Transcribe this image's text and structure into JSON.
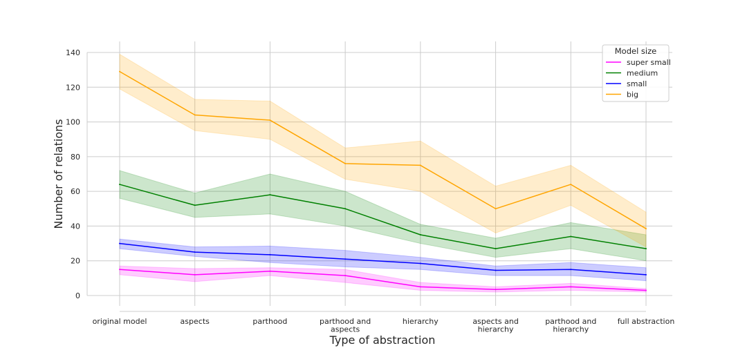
{
  "chart_data": {
    "type": "line",
    "xlabel": "Type of abstraction",
    "ylabel": "Number of relations",
    "categories": [
      "original model",
      "aspects",
      "parthood",
      "parthood and aspects",
      "hierarchy",
      "aspects and hierarchy",
      "parthood and hierarchy",
      "full abstraction"
    ],
    "y_ticks": [
      0,
      20,
      40,
      60,
      80,
      100,
      120,
      140
    ],
    "ylim": [
      -8,
      146
    ],
    "grid": true,
    "legend": {
      "title": "Model size",
      "placement": "top-right"
    },
    "series": [
      {
        "name": "super small",
        "color": "#ff00ff",
        "values": [
          15,
          12,
          14,
          11.5,
          5,
          3.5,
          5,
          3
        ],
        "lower": [
          12,
          8,
          11.5,
          7.5,
          3,
          2,
          3,
          2
        ],
        "upper": [
          17,
          15.5,
          16,
          15,
          7.5,
          5,
          7,
          4
        ]
      },
      {
        "name": "medium",
        "color": "#008000",
        "values": [
          64,
          52,
          58,
          50,
          35,
          27,
          34,
          27
        ],
        "lower": [
          56,
          45,
          47,
          40,
          30,
          22,
          27,
          20
        ],
        "upper": [
          72,
          59,
          70,
          60,
          41,
          33,
          42,
          35
        ]
      },
      {
        "name": "small",
        "color": "#0000ff",
        "values": [
          30,
          25,
          23.5,
          21,
          18.5,
          14.5,
          15,
          12
        ],
        "lower": [
          27,
          22.5,
          19,
          16.5,
          15,
          11.5,
          11.5,
          8.5
        ],
        "upper": [
          32.5,
          28,
          28.5,
          26,
          22,
          17,
          19,
          16
        ]
      },
      {
        "name": "big",
        "color": "#ffa500",
        "values": [
          129,
          104,
          101,
          76,
          75,
          50,
          64,
          38.5
        ],
        "lower": [
          119,
          95,
          90,
          67,
          60,
          36,
          52,
          28
        ],
        "upper": [
          139,
          113,
          112,
          85,
          89,
          63,
          75,
          48
        ]
      }
    ]
  }
}
